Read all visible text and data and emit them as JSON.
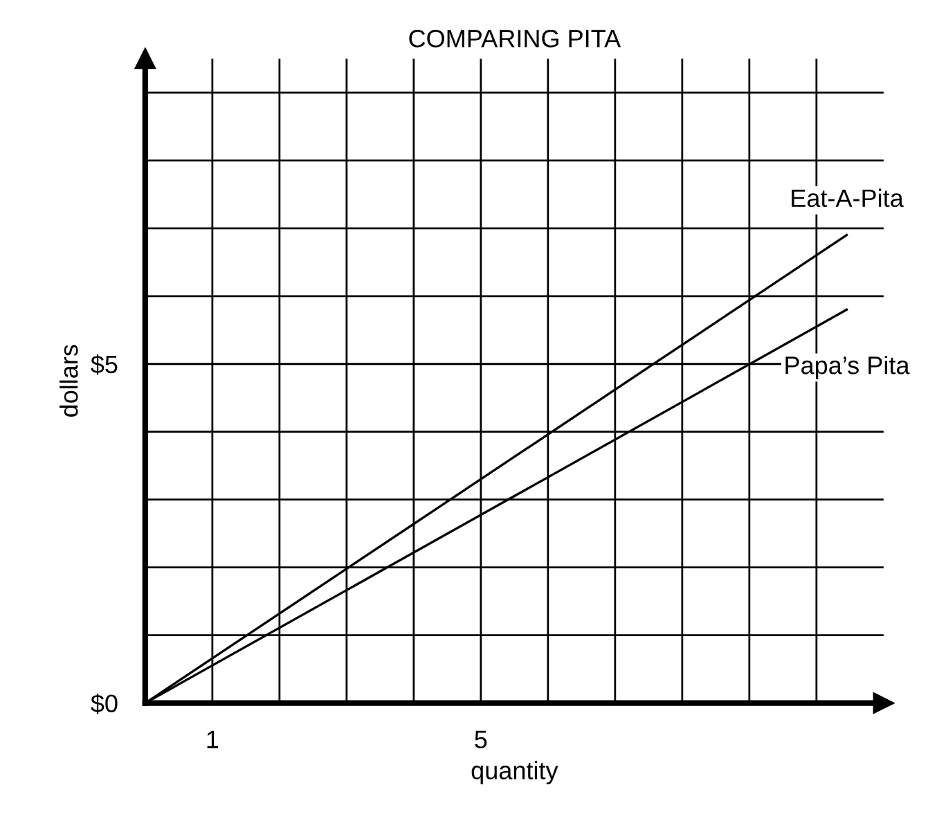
{
  "chart_data": {
    "type": "line",
    "title": "COMPARING PITA",
    "xlabel": "quantity",
    "ylabel": "dollars",
    "xlim": [
      0,
      11
    ],
    "ylim": [
      0,
      9.5
    ],
    "xticks": [
      {
        "value": 0,
        "label": null
      },
      1,
      {
        "value": 2,
        "label": null
      },
      {
        "value": 3,
        "label": null
      },
      {
        "value": 4,
        "label": null
      },
      5,
      {
        "value": 6,
        "label": null
      },
      {
        "value": 7,
        "label": null
      },
      {
        "value": 8,
        "label": null
      },
      {
        "value": 9,
        "label": null
      },
      {
        "value": 10,
        "label": null
      }
    ],
    "yticks": [
      {
        "value": 0,
        "label": "$0"
      },
      {
        "value": 1,
        "label": null
      },
      {
        "value": 2,
        "label": null
      },
      {
        "value": 3,
        "label": null
      },
      {
        "value": 4,
        "label": null
      },
      {
        "value": 5,
        "label": "$5"
      },
      {
        "value": 6,
        "label": null
      },
      {
        "value": 7,
        "label": null
      },
      {
        "value": 8,
        "label": null
      },
      {
        "value": 9,
        "label": null
      }
    ],
    "x": [
      0,
      10.45
    ],
    "grid": true,
    "legend": false,
    "marker": "none",
    "line_style": "solid",
    "series": [
      {
        "name": "Eat-A-Pita",
        "color": "#000000",
        "values": [
          0,
          6.9
        ]
      },
      {
        "name": "Papa’s Pita",
        "color": "#000000",
        "values": [
          0,
          5.8
        ]
      }
    ]
  }
}
